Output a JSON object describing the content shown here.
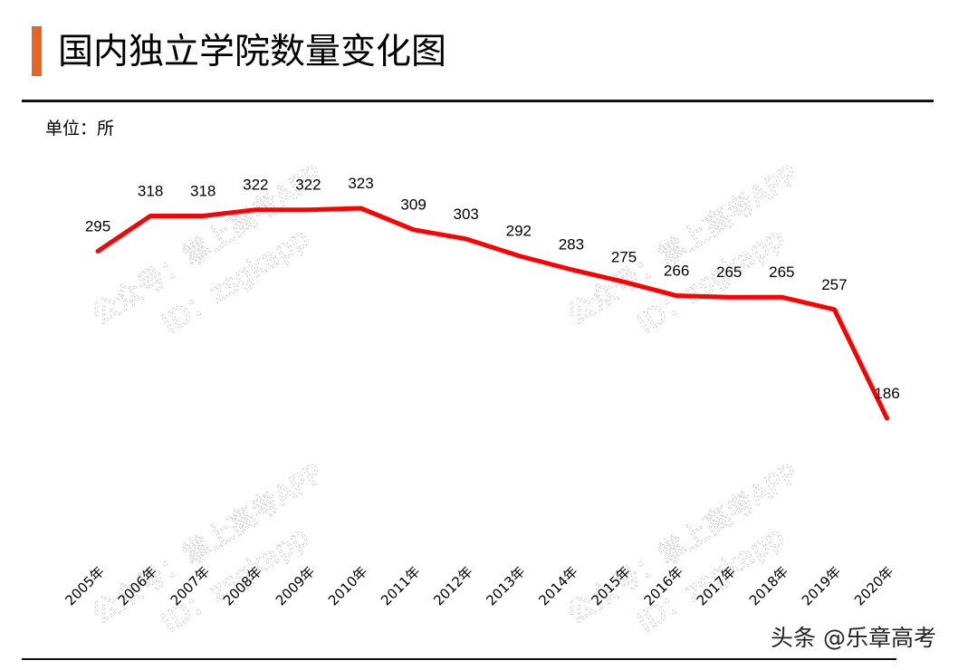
{
  "header": {
    "title": "国内独立学院数量变化图",
    "unit": "单位：所",
    "accent_color": "#e8641f"
  },
  "watermarks": [
    {
      "line1": "公众号：掌上高考APP",
      "line2": "ID：zsgkapp"
    }
  ],
  "footer": {
    "credit": "头条 @乐章高考"
  },
  "chart_data": {
    "type": "line",
    "title": "国内独立学院数量变化图",
    "ylabel": "单位：所",
    "xlabel": "",
    "categories": [
      "2005年",
      "2006年",
      "2007年",
      "2008年",
      "2009年",
      "2010年",
      "2011年",
      "2012年",
      "2013年",
      "2014年",
      "2015年",
      "2016年",
      "2017年",
      "2018年",
      "2019年",
      "2020年"
    ],
    "series": [
      {
        "name": "独立学院数量",
        "color": "#ff0000",
        "values": [
          295,
          318,
          318,
          322,
          322,
          323,
          309,
          303,
          292,
          283,
          275,
          266,
          265,
          265,
          257,
          186
        ]
      }
    ],
    "data_labels": true,
    "grid": false,
    "legend": "none"
  }
}
